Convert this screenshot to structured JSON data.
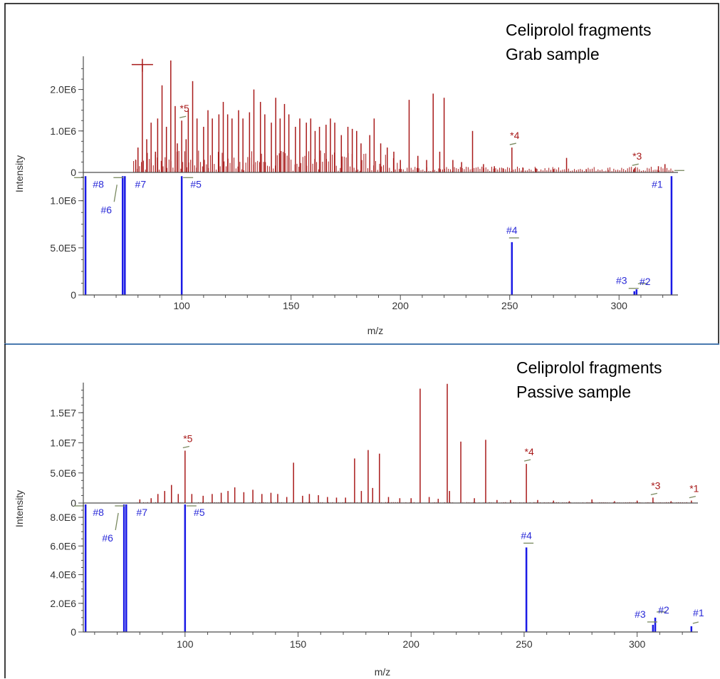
{
  "colors": {
    "sample": "#a81a1a",
    "reference": "#1a1ae6",
    "annotation_red": "#a81a1a",
    "annotation_blue": "#2a2ad8"
  },
  "chart_data": [
    {
      "type": "bar",
      "title": "Celiprolol fragments",
      "subtitle": "Grab sample",
      "xlabel": "m/z",
      "ylabel": "Intensity",
      "xlim": [
        55,
        325
      ],
      "x_ticks": [
        100,
        150,
        200,
        250,
        300
      ],
      "top_trace": {
        "ylim": [
          0,
          2800000
        ],
        "y_ticks": [
          0,
          1000000,
          2000000
        ],
        "y_tick_labels": [
          "0",
          "1.0E6",
          "2.0E6"
        ],
        "peaks": [
          {
            "x": 79,
            "y": 300000
          },
          {
            "x": 80,
            "y": 600000
          },
          {
            "x": 82,
            "y": 2600000
          },
          {
            "x": 84,
            "y": 800000
          },
          {
            "x": 86,
            "y": 1200000
          },
          {
            "x": 88,
            "y": 500000
          },
          {
            "x": 89,
            "y": 1300000
          },
          {
            "x": 91,
            "y": 2100000
          },
          {
            "x": 93,
            "y": 1100000
          },
          {
            "x": 95,
            "y": 2700000
          },
          {
            "x": 97,
            "y": 1600000
          },
          {
            "x": 98,
            "y": 700000
          },
          {
            "x": 100,
            "y": 1250000
          },
          {
            "x": 102,
            "y": 800000
          },
          {
            "x": 103,
            "y": 1500000
          },
          {
            "x": 105,
            "y": 2200000
          },
          {
            "x": 107,
            "y": 1300000
          },
          {
            "x": 110,
            "y": 1100000
          },
          {
            "x": 112,
            "y": 1500000
          },
          {
            "x": 114,
            "y": 1300000
          },
          {
            "x": 117,
            "y": 1400000
          },
          {
            "x": 119,
            "y": 1700000
          },
          {
            "x": 121,
            "y": 1400000
          },
          {
            "x": 123,
            "y": 1300000
          },
          {
            "x": 126,
            "y": 1500000
          },
          {
            "x": 128,
            "y": 1300000
          },
          {
            "x": 131,
            "y": 1450000
          },
          {
            "x": 133,
            "y": 2000000
          },
          {
            "x": 136,
            "y": 1700000
          },
          {
            "x": 138,
            "y": 1400000
          },
          {
            "x": 141,
            "y": 1200000
          },
          {
            "x": 143,
            "y": 1800000
          },
          {
            "x": 145,
            "y": 1300000
          },
          {
            "x": 147,
            "y": 1650000
          },
          {
            "x": 149,
            "y": 1400000
          },
          {
            "x": 152,
            "y": 1100000
          },
          {
            "x": 154,
            "y": 1300000
          },
          {
            "x": 157,
            "y": 1200000
          },
          {
            "x": 159,
            "y": 1300000
          },
          {
            "x": 161,
            "y": 1000000
          },
          {
            "x": 163,
            "y": 1100000
          },
          {
            "x": 166,
            "y": 1150000
          },
          {
            "x": 168,
            "y": 1300000
          },
          {
            "x": 170,
            "y": 1200000
          },
          {
            "x": 173,
            "y": 900000
          },
          {
            "x": 176,
            "y": 1100000
          },
          {
            "x": 178,
            "y": 1050000
          },
          {
            "x": 180,
            "y": 1000000
          },
          {
            "x": 182,
            "y": 700000
          },
          {
            "x": 186,
            "y": 900000
          },
          {
            "x": 188,
            "y": 1300000
          },
          {
            "x": 191,
            "y": 700000
          },
          {
            "x": 194,
            "y": 600000
          },
          {
            "x": 197,
            "y": 500000
          },
          {
            "x": 200,
            "y": 300000
          },
          {
            "x": 204,
            "y": 1750000
          },
          {
            "x": 208,
            "y": 400000
          },
          {
            "x": 212,
            "y": 300000
          },
          {
            "x": 215,
            "y": 1900000
          },
          {
            "x": 218,
            "y": 500000
          },
          {
            "x": 220,
            "y": 1800000
          },
          {
            "x": 224,
            "y": 300000
          },
          {
            "x": 228,
            "y": 250000
          },
          {
            "x": 233,
            "y": 1000000
          },
          {
            "x": 238,
            "y": 200000
          },
          {
            "x": 243,
            "y": 150000
          },
          {
            "x": 247,
            "y": 100000
          },
          {
            "x": 251,
            "y": 600000
          },
          {
            "x": 256,
            "y": 120000
          },
          {
            "x": 262,
            "y": 100000
          },
          {
            "x": 270,
            "y": 80000
          },
          {
            "x": 276,
            "y": 350000
          },
          {
            "x": 285,
            "y": 80000
          },
          {
            "x": 295,
            "y": 60000
          },
          {
            "x": 307,
            "y": 100000
          },
          {
            "x": 318,
            "y": 150000
          },
          {
            "x": 321,
            "y": 200000
          }
        ],
        "marker": {
          "x": 82,
          "y": 2600000
        },
        "annotations": [
          {
            "label": "*5",
            "x": 100,
            "y": 1250000
          },
          {
            "label": "*4",
            "x": 251,
            "y": 600000
          },
          {
            "label": "*3",
            "x": 307,
            "y": 100000
          }
        ]
      },
      "bottom_trace": {
        "ylim": [
          0,
          1300000
        ],
        "y_ticks": [
          0,
          500000,
          1000000
        ],
        "y_tick_labels": [
          "0",
          "5.0E5",
          "1.0E6"
        ],
        "peaks": [
          {
            "label": "#8",
            "x": 56,
            "y": 1260000
          },
          {
            "label": "#6",
            "x": 73,
            "y": 1260000
          },
          {
            "label": "#7",
            "x": 74,
            "y": 1260000
          },
          {
            "label": "#5",
            "x": 100,
            "y": 1260000
          },
          {
            "label": "#4",
            "x": 251,
            "y": 560000
          },
          {
            "label": "#3",
            "x": 307,
            "y": 40000
          },
          {
            "label": "#2",
            "x": 308,
            "y": 60000
          },
          {
            "label": "#1",
            "x": 324,
            "y": 1260000
          }
        ]
      }
    },
    {
      "type": "bar",
      "title": "Celiprolol fragments",
      "subtitle": "Passive sample",
      "xlabel": "m/z",
      "ylabel": "Intensity",
      "xlim": [
        55,
        325
      ],
      "x_ticks": [
        100,
        150,
        200,
        250,
        300
      ],
      "top_trace": {
        "ylim": [
          0,
          20000000
        ],
        "y_ticks": [
          0,
          5000000,
          10000000,
          15000000
        ],
        "y_tick_labels": [
          "0",
          "5.0E6",
          "1.0E7",
          "1.5E7"
        ],
        "peaks": [
          {
            "x": 80,
            "y": 600000
          },
          {
            "x": 85,
            "y": 800000
          },
          {
            "x": 88,
            "y": 1500000
          },
          {
            "x": 91,
            "y": 2000000
          },
          {
            "x": 94,
            "y": 3000000
          },
          {
            "x": 97,
            "y": 1500000
          },
          {
            "x": 100,
            "y": 8700000
          },
          {
            "x": 103,
            "y": 1500000
          },
          {
            "x": 108,
            "y": 1200000
          },
          {
            "x": 112,
            "y": 1500000
          },
          {
            "x": 116,
            "y": 1700000
          },
          {
            "x": 119,
            "y": 2000000
          },
          {
            "x": 122,
            "y": 2600000
          },
          {
            "x": 126,
            "y": 1800000
          },
          {
            "x": 130,
            "y": 2200000
          },
          {
            "x": 134,
            "y": 1500000
          },
          {
            "x": 138,
            "y": 1700000
          },
          {
            "x": 141,
            "y": 1500000
          },
          {
            "x": 145,
            "y": 1000000
          },
          {
            "x": 148,
            "y": 6700000
          },
          {
            "x": 152,
            "y": 1200000
          },
          {
            "x": 155,
            "y": 1500000
          },
          {
            "x": 159,
            "y": 1300000
          },
          {
            "x": 163,
            "y": 1000000
          },
          {
            "x": 167,
            "y": 900000
          },
          {
            "x": 171,
            "y": 900000
          },
          {
            "x": 175,
            "y": 7400000
          },
          {
            "x": 178,
            "y": 2000000
          },
          {
            "x": 181,
            "y": 8800000
          },
          {
            "x": 183,
            "y": 2500000
          },
          {
            "x": 186,
            "y": 8200000
          },
          {
            "x": 190,
            "y": 1000000
          },
          {
            "x": 195,
            "y": 800000
          },
          {
            "x": 200,
            "y": 800000
          },
          {
            "x": 204,
            "y": 19000000
          },
          {
            "x": 208,
            "y": 1000000
          },
          {
            "x": 212,
            "y": 700000
          },
          {
            "x": 216,
            "y": 19800000
          },
          {
            "x": 217,
            "y": 2000000
          },
          {
            "x": 222,
            "y": 10200000
          },
          {
            "x": 228,
            "y": 800000
          },
          {
            "x": 233,
            "y": 10500000
          },
          {
            "x": 238,
            "y": 500000
          },
          {
            "x": 244,
            "y": 500000
          },
          {
            "x": 251,
            "y": 6500000
          },
          {
            "x": 256,
            "y": 500000
          },
          {
            "x": 263,
            "y": 400000
          },
          {
            "x": 270,
            "y": 300000
          },
          {
            "x": 280,
            "y": 600000
          },
          {
            "x": 290,
            "y": 300000
          },
          {
            "x": 300,
            "y": 400000
          },
          {
            "x": 307,
            "y": 900000
          },
          {
            "x": 315,
            "y": 300000
          },
          {
            "x": 324,
            "y": 400000
          }
        ],
        "annotations": [
          {
            "label": "*5",
            "x": 100,
            "y": 8700000
          },
          {
            "label": "*4",
            "x": 251,
            "y": 6500000
          },
          {
            "label": "*3",
            "x": 307,
            "y": 900000
          },
          {
            "label": "*1",
            "x": 324,
            "y": 400000
          }
        ]
      },
      "bottom_trace": {
        "ylim": [
          0,
          9000000
        ],
        "y_ticks": [
          0,
          2000000,
          4000000,
          6000000,
          8000000
        ],
        "y_tick_labels": [
          "0",
          "2.0E6",
          "4.0E6",
          "6.0E6",
          "8.0E6"
        ],
        "peaks": [
          {
            "label": "#8",
            "x": 56,
            "y": 8900000
          },
          {
            "label": "#6",
            "x": 73,
            "y": 8900000
          },
          {
            "label": "#7",
            "x": 74,
            "y": 8900000
          },
          {
            "label": "#5",
            "x": 100,
            "y": 8900000
          },
          {
            "label": "#4",
            "x": 251,
            "y": 5900000
          },
          {
            "label": "#3",
            "x": 307,
            "y": 500000
          },
          {
            "label": "#2",
            "x": 308,
            "y": 1000000
          },
          {
            "label": "#1",
            "x": 324,
            "y": 400000
          }
        ]
      }
    }
  ]
}
